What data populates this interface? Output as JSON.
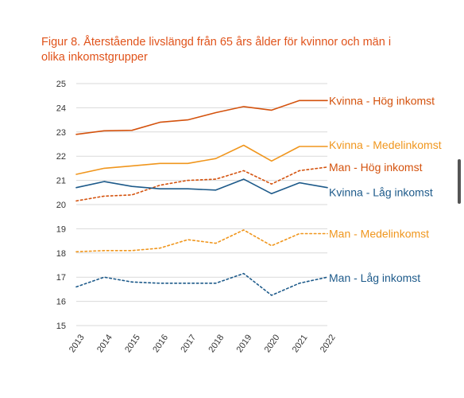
{
  "colors": {
    "orange_dark": "#d4520d",
    "orange_light": "#f0961d",
    "blue": "#1d5a8a",
    "grid": "#d9d9d9"
  },
  "chart_data": {
    "type": "line",
    "title": "Figur 8. Återstående livslängd från 65 års ålder för kvinnor och män i olika inkomstgrupper",
    "x": [
      "2013",
      "2014",
      "2015",
      "2016",
      "2017",
      "2018",
      "2019",
      "2020",
      "2021",
      "2022"
    ],
    "ylim": [
      15,
      25
    ],
    "yticks": [
      "15",
      "16",
      "17",
      "18",
      "19",
      "20",
      "21",
      "22",
      "23",
      "24",
      "25"
    ],
    "grid": "horizontal",
    "series": [
      {
        "name": "Kvinna - Hög inkomst",
        "color": "#d4520d",
        "dash": false,
        "values": [
          22.9,
          23.05,
          23.07,
          23.4,
          23.5,
          23.8,
          24.05,
          23.9,
          24.3,
          24.3
        ]
      },
      {
        "name": "Kvinna - Medelinkomst",
        "color": "#f0961d",
        "dash": false,
        "values": [
          21.25,
          21.5,
          21.6,
          21.7,
          21.7,
          21.9,
          22.45,
          21.8,
          22.4,
          22.4
        ]
      },
      {
        "name": "Man - Hög inkomst",
        "color": "#d4520d",
        "dash": true,
        "values": [
          20.15,
          20.35,
          20.4,
          20.8,
          21.0,
          21.05,
          21.4,
          20.85,
          21.4,
          21.55
        ]
      },
      {
        "name": "Kvinna - Låg inkomst",
        "color": "#1d5a8a",
        "dash": false,
        "values": [
          20.7,
          20.95,
          20.75,
          20.65,
          20.65,
          20.6,
          21.05,
          20.45,
          20.9,
          20.7
        ]
      },
      {
        "name": "Man - Medelinkomst",
        "color": "#f0961d",
        "dash": true,
        "values": [
          18.05,
          18.1,
          18.1,
          18.2,
          18.55,
          18.4,
          18.95,
          18.3,
          18.8,
          18.8
        ]
      },
      {
        "name": "Man - Låg inkomst",
        "color": "#1d5a8a",
        "dash": true,
        "values": [
          16.6,
          17.0,
          16.8,
          16.75,
          16.75,
          16.75,
          17.15,
          16.25,
          16.75,
          17.0
        ]
      }
    ]
  }
}
